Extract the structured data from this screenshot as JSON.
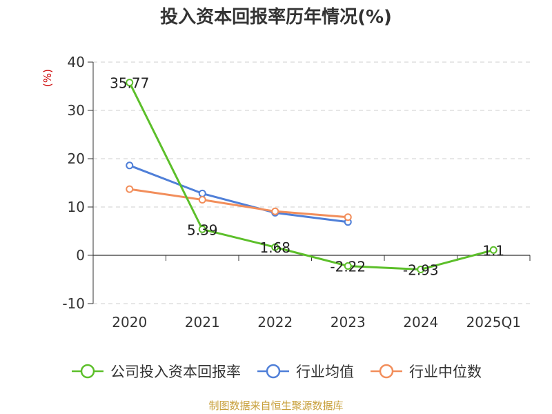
{
  "title": "投入资本回报率历年情况(%)",
  "source_note": "制图数据来自恒生聚源数据库",
  "chart_data": {
    "type": "line",
    "title": "投入资本回报率历年情况(%)",
    "ylabel": "(%)",
    "xlabel": "",
    "ylim": [
      -10,
      40
    ],
    "yticks": [
      -10,
      0,
      10,
      20,
      30,
      40
    ],
    "grid": true,
    "legend_position": "bottom",
    "categories": [
      "2020",
      "2021",
      "2022",
      "2023",
      "2024",
      "2025Q1"
    ],
    "series": [
      {
        "name": "公司投入资本回报率",
        "color": "#5cbf2a",
        "values": [
          35.77,
          5.39,
          1.68,
          -2.22,
          -2.93,
          1.1
        ],
        "labels": [
          "35.77",
          "5.39",
          "1.68",
          "-2.22",
          "-2.93",
          "1.1"
        ]
      },
      {
        "name": "行业均值",
        "color": "#4f7fd8",
        "values": [
          18.6,
          12.8,
          8.8,
          6.9,
          null,
          null
        ]
      },
      {
        "name": "行业中位数",
        "color": "#f28e5b",
        "values": [
          13.7,
          11.5,
          9.1,
          7.9,
          null,
          null
        ]
      }
    ]
  }
}
